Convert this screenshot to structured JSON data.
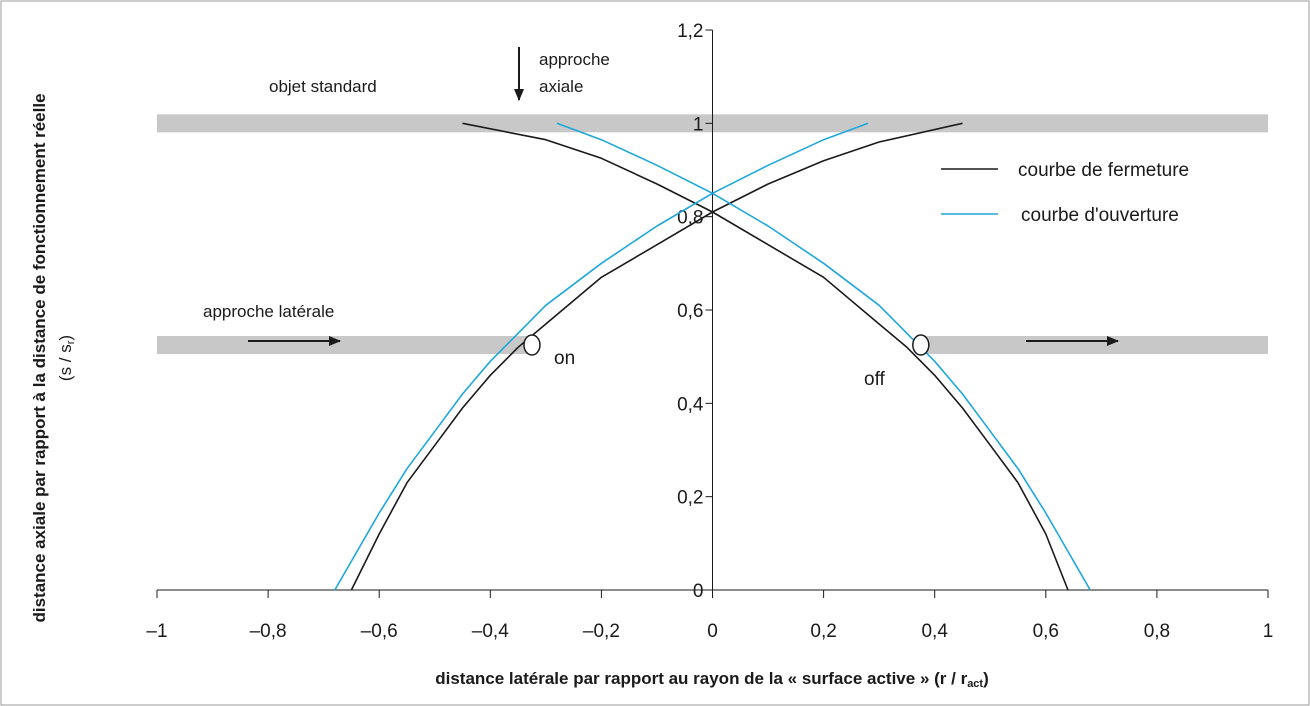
{
  "chart_data": {
    "type": "line",
    "title": "",
    "xlabel": "distance latérale par rapport au rayon de la « surface active » (r / r",
    "xlabel_sub": "act",
    "xlabel_close": ")",
    "ylabel": "distance axiale par rapport à la distance de fonctionnement réelle",
    "ylabel2": "(s / s",
    "ylabel2_sub": "r",
    "ylabel2_close": ")",
    "xlim": [
      -1,
      1
    ],
    "ylim": [
      0,
      1.2
    ],
    "x_ticks": [
      -1,
      -0.8,
      -0.6,
      -0.4,
      -0.2,
      0,
      0.2,
      0.4,
      0.6,
      0.8,
      1
    ],
    "x_tick_labels": [
      "–1",
      "–0,8",
      "–0,6",
      "–0,4",
      "–0,2",
      "0",
      "0,2",
      "0,4",
      "0,6",
      "0,8",
      "1"
    ],
    "y_ticks": [
      0,
      0.2,
      0.4,
      0.6,
      0.8,
      1.0,
      1.2
    ],
    "y_tick_labels": [
      "0",
      "0,2",
      "0,4",
      "0,6",
      "0,8",
      "1",
      "1,2"
    ],
    "legend_position": "top-right",
    "series": [
      {
        "name": "courbe de fermeture",
        "color": "#1a1a1a",
        "points": [
          [
            -0.65,
            0
          ],
          [
            -0.6,
            0.12
          ],
          [
            -0.55,
            0.23
          ],
          [
            -0.5,
            0.31
          ],
          [
            -0.45,
            0.39
          ],
          [
            -0.4,
            0.46
          ],
          [
            -0.35,
            0.52
          ],
          [
            -0.3,
            0.57
          ],
          [
            -0.2,
            0.67
          ],
          [
            -0.1,
            0.74
          ],
          [
            0,
            0.81
          ],
          [
            0.1,
            0.87
          ],
          [
            0.2,
            0.92
          ],
          [
            0.3,
            0.96
          ],
          [
            0.45,
            1.0
          ]
        ]
      },
      {
        "name": "courbe de fermeture",
        "color": "#1a1a1a",
        "points": [
          [
            -0.45,
            1.0
          ],
          [
            -0.3,
            0.965
          ],
          [
            -0.2,
            0.925
          ],
          [
            -0.1,
            0.87
          ],
          [
            0,
            0.81
          ],
          [
            0.1,
            0.74
          ],
          [
            0.2,
            0.67
          ],
          [
            0.3,
            0.57
          ],
          [
            0.35,
            0.52
          ],
          [
            0.4,
            0.46
          ],
          [
            0.45,
            0.39
          ],
          [
            0.5,
            0.31
          ],
          [
            0.55,
            0.23
          ],
          [
            0.6,
            0.12
          ],
          [
            0.64,
            0
          ]
        ]
      },
      {
        "name": "courbe d'ouverture",
        "color": "#1ea7dc",
        "points": [
          [
            -0.68,
            0
          ],
          [
            -0.6,
            0.165
          ],
          [
            -0.55,
            0.26
          ],
          [
            -0.5,
            0.34
          ],
          [
            -0.45,
            0.42
          ],
          [
            -0.4,
            0.49
          ],
          [
            -0.35,
            0.55
          ],
          [
            -0.3,
            0.61
          ],
          [
            -0.2,
            0.7
          ],
          [
            -0.1,
            0.78
          ],
          [
            0,
            0.85
          ],
          [
            0.1,
            0.91
          ],
          [
            0.2,
            0.965
          ],
          [
            0.28,
            1.0
          ]
        ]
      },
      {
        "name": "courbe d'ouverture",
        "color": "#1ea7dc",
        "points": [
          [
            -0.28,
            1.0
          ],
          [
            -0.2,
            0.965
          ],
          [
            -0.1,
            0.91
          ],
          [
            0,
            0.85
          ],
          [
            0.1,
            0.78
          ],
          [
            0.2,
            0.7
          ],
          [
            0.3,
            0.61
          ],
          [
            0.35,
            0.55
          ],
          [
            0.4,
            0.49
          ],
          [
            0.45,
            0.42
          ],
          [
            0.5,
            0.34
          ],
          [
            0.55,
            0.26
          ],
          [
            0.6,
            0.165
          ],
          [
            0.68,
            0
          ]
        ]
      }
    ],
    "bands": [
      {
        "name": "objet standard",
        "y": 1.0,
        "x_from": -1,
        "x_to": 1
      },
      {
        "name": "approche latérale gauche",
        "y": 0.525,
        "x_from": -1,
        "x_to": -0.33
      },
      {
        "name": "approche latérale droite",
        "y": 0.525,
        "x_from": 0.37,
        "x_to": 1
      }
    ],
    "points_marked": [
      {
        "label": "on",
        "x": -0.325,
        "y": 0.525
      },
      {
        "label": "off",
        "x": 0.375,
        "y": 0.525
      }
    ],
    "annotations": {
      "objet_standard": "objet standard",
      "approche_axiale_1": "approche",
      "approche_axiale_2": "axiale",
      "approche_laterale": "approche latérale",
      "on": "on",
      "off": "off"
    },
    "legend": [
      {
        "name": "courbe de fermeture",
        "color": "#1a1a1a"
      },
      {
        "name": "courbe d'ouverture",
        "color": "#1ea7dc"
      }
    ],
    "band_color": "#c8c8c8"
  }
}
